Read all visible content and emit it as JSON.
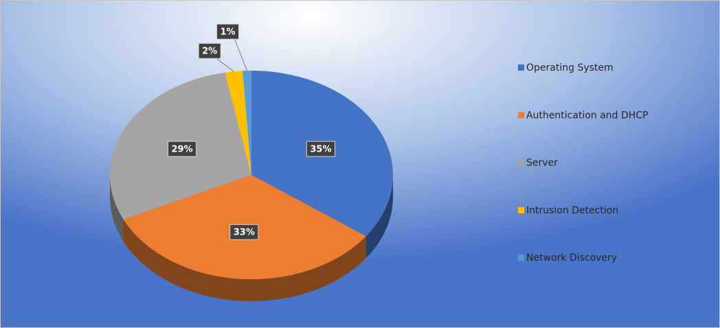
{
  "chart_data": {
    "type": "pie",
    "categories": [
      "Operating System",
      "Authentication and DHCP",
      "Server",
      "Intrusion Detection",
      "Network Discovery"
    ],
    "values": [
      35,
      33,
      29,
      2,
      1
    ],
    "value_labels": [
      "35%",
      "33%",
      "29%",
      "2%",
      "1%"
    ],
    "colors": [
      "#4472c4",
      "#ed7d31",
      "#a5a5a5",
      "#ffc000",
      "#5b9bd5"
    ],
    "legend": "right"
  }
}
